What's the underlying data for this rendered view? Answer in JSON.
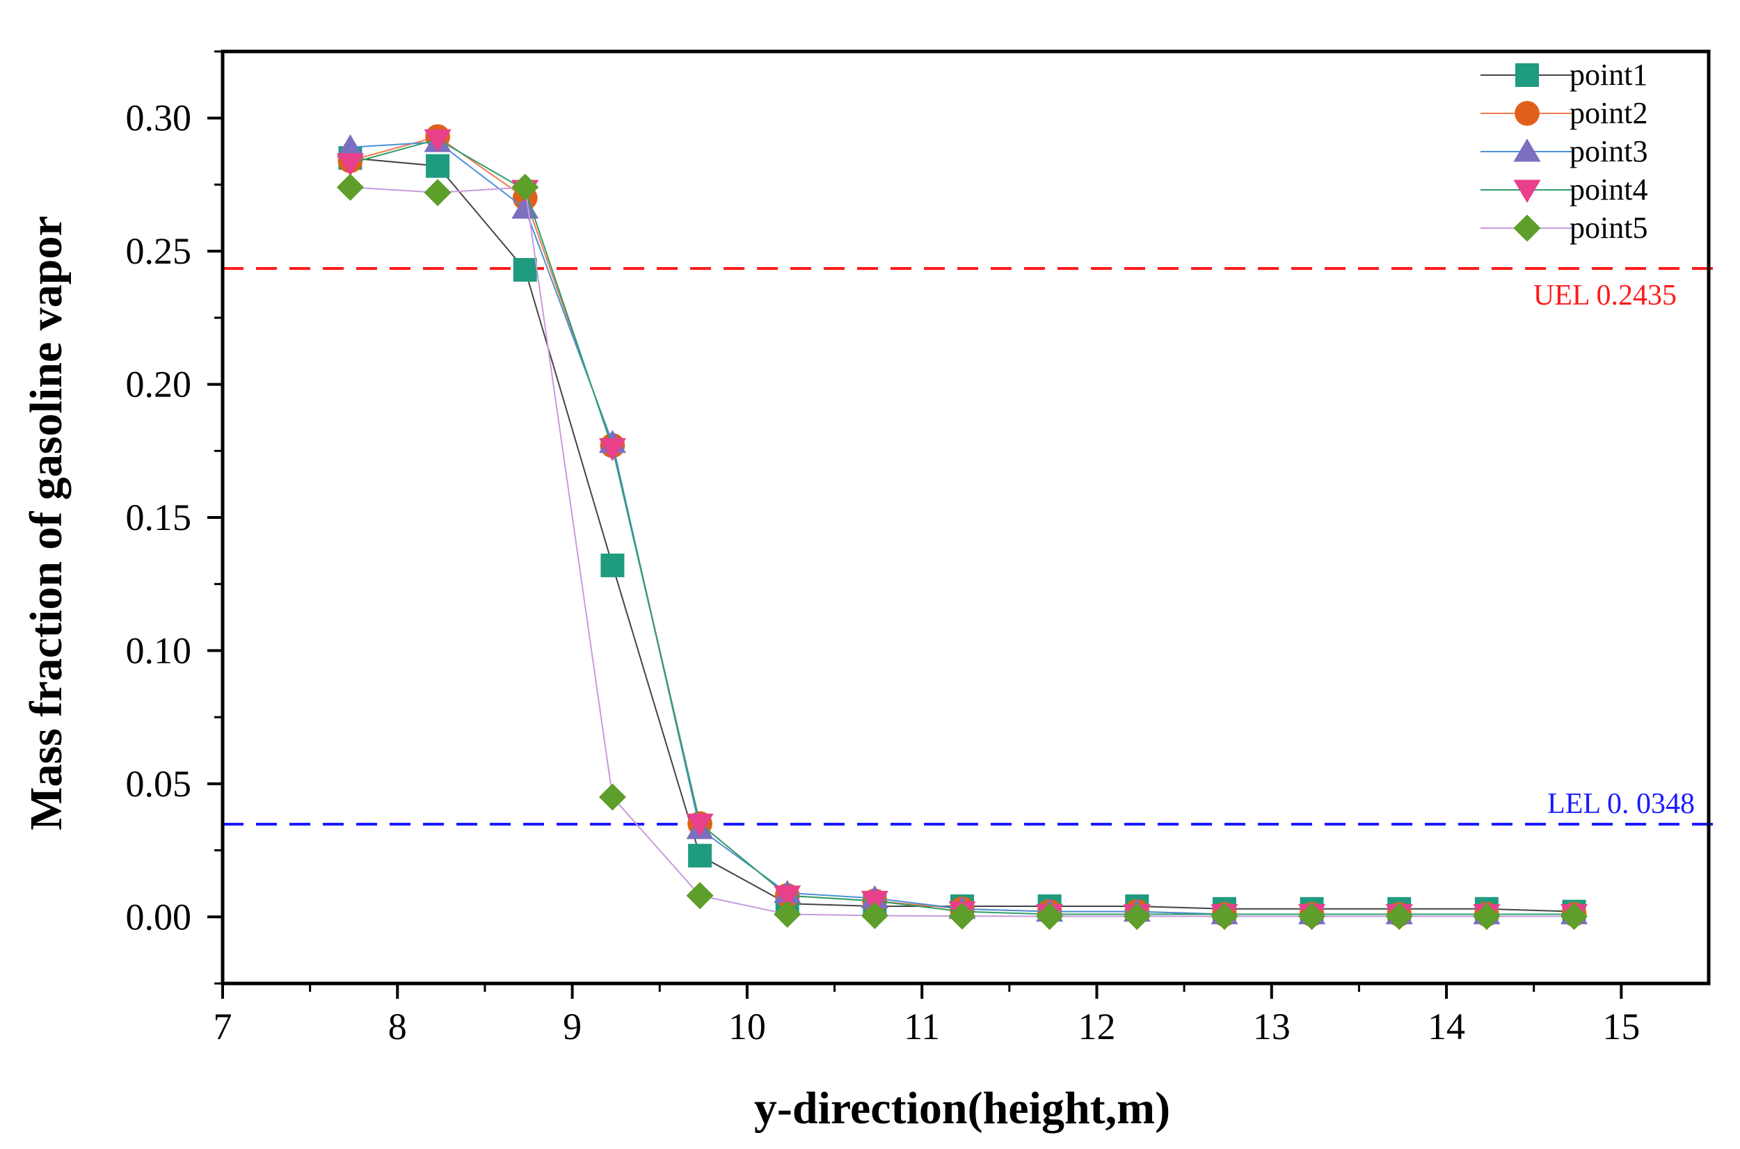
{
  "chart_data": {
    "type": "line",
    "title": "",
    "xlabel": "y-direction(height,m)",
    "ylabel": "Mass fraction of gasoline vapor",
    "xlim": [
      7,
      15.5
    ],
    "ylim": [
      -0.025,
      0.325
    ],
    "xticks": [
      7,
      8,
      9,
      10,
      11,
      12,
      13,
      14,
      15
    ],
    "yticks": [
      0.0,
      0.05,
      0.1,
      0.15,
      0.2,
      0.25,
      0.3
    ],
    "ytick_labels": [
      "0.00",
      "0.05",
      "0.10",
      "0.15",
      "0.20",
      "0.25",
      "0.30"
    ],
    "grid": false,
    "legend_position": "top-right",
    "x": [
      7.73,
      8.23,
      8.73,
      9.23,
      9.73,
      10.23,
      10.73,
      11.23,
      11.73,
      12.23,
      12.73,
      13.23,
      13.73,
      14.23,
      14.73
    ],
    "series": [
      {
        "name": "point1",
        "marker": "square",
        "line_color": "#444444",
        "marker_color": "#1f9b7f",
        "values": [
          0.285,
          0.282,
          0.243,
          0.132,
          0.023,
          0.005,
          0.004,
          0.004,
          0.004,
          0.004,
          0.003,
          0.003,
          0.003,
          0.003,
          0.002
        ]
      },
      {
        "name": "point2",
        "marker": "circle",
        "line_color": "#f07a50",
        "marker_color": "#e0601a",
        "values": [
          0.284,
          0.293,
          0.27,
          0.177,
          0.035,
          0.008,
          0.006,
          0.003,
          0.002,
          0.002,
          0.001,
          0.001,
          0.001,
          0.001,
          0.001
        ]
      },
      {
        "name": "point3",
        "marker": "triangle-up",
        "line_color": "#4a90d9",
        "marker_color": "#7b6fc0",
        "values": [
          0.289,
          0.291,
          0.266,
          0.178,
          0.033,
          0.009,
          0.007,
          0.003,
          0.002,
          0.002,
          0.001,
          0.001,
          0.001,
          0.001,
          0.001
        ]
      },
      {
        "name": "point4",
        "marker": "triangle-down",
        "line_color": "#2e9e6a",
        "marker_color": "#e8408a",
        "values": [
          0.283,
          0.292,
          0.273,
          0.176,
          0.035,
          0.008,
          0.006,
          0.002,
          0.001,
          0.001,
          0.001,
          0.001,
          0.001,
          0.001,
          0.001
        ]
      },
      {
        "name": "point5",
        "marker": "diamond",
        "line_color": "#c79ae0",
        "marker_color": "#5e9e2a",
        "values": [
          0.274,
          0.272,
          0.274,
          0.045,
          0.008,
          0.001,
          0.0005,
          0.0003,
          0.0002,
          0.0002,
          0.0002,
          0.0002,
          0.0002,
          0.0002,
          0.0002
        ]
      }
    ],
    "reference_lines": [
      {
        "name": "UEL",
        "label": "UEL 0.2435",
        "value": 0.2435,
        "color": "#ff1a1a"
      },
      {
        "name": "LEL",
        "label": "LEL  0. 0348",
        "value": 0.0348,
        "color": "#1a1aff"
      }
    ]
  }
}
